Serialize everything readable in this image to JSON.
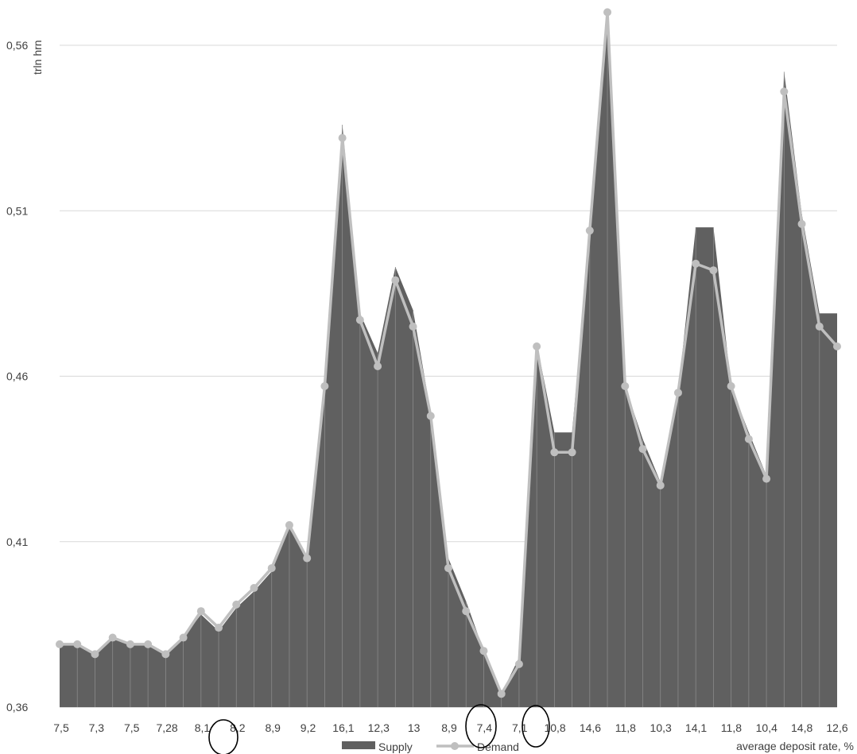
{
  "chart_data": {
    "type": "area",
    "ylabel": "trln hrn",
    "xlabel": "average deposit rate, %",
    "ylim": [
      0.36,
      0.56
    ],
    "yticks": [
      "0,36",
      "0,41",
      "0,46",
      "0,51",
      "0,56"
    ],
    "ytick_values": [
      0.36,
      0.41,
      0.46,
      0.51,
      0.56
    ],
    "grid": true,
    "legend_position": "bottom",
    "x_labels": [
      "7,5",
      "7,3",
      "7,5",
      "7,28",
      "8,1",
      "8,2",
      "8,9",
      "9,2",
      "16,1",
      "12,3",
      "13",
      "8,9",
      "7,4",
      "7,1",
      "10,8",
      "14,6",
      "11,8",
      "10,3",
      "14,1",
      "11,8",
      "10,4",
      "14,8",
      "12,6"
    ],
    "series": [
      {
        "name": "Supply",
        "kind": "area",
        "color": "#606060",
        "values": [
          0.379,
          0.379,
          0.376,
          0.381,
          0.379,
          0.379,
          0.376,
          0.381,
          0.388,
          0.383,
          0.39,
          0.395,
          0.401,
          0.414,
          0.405,
          0.458,
          0.536,
          0.479,
          0.467,
          0.493,
          0.48,
          0.449,
          0.405,
          0.392,
          0.377,
          0.364,
          0.375,
          0.47,
          0.443,
          0.443,
          0.503,
          0.568,
          0.457,
          0.441,
          0.428,
          0.455,
          0.505,
          0.505,
          0.457,
          0.443,
          0.43,
          0.552,
          0.509,
          0.479,
          0.479
        ]
      },
      {
        "name": "Demand",
        "kind": "line",
        "color": "#bfbfbf",
        "values": [
          0.379,
          0.379,
          0.376,
          0.381,
          0.379,
          0.379,
          0.376,
          0.381,
          0.389,
          0.384,
          0.391,
          0.396,
          0.402,
          0.415,
          0.405,
          0.457,
          0.532,
          0.477,
          0.463,
          0.489,
          0.475,
          0.448,
          0.402,
          0.389,
          0.377,
          0.364,
          0.373,
          0.469,
          0.437,
          0.437,
          0.504,
          0.57,
          0.457,
          0.438,
          0.427,
          0.455,
          0.494,
          0.492,
          0.457,
          0.441,
          0.429,
          0.546,
          0.506,
          0.475,
          0.469
        ]
      }
    ]
  }
}
